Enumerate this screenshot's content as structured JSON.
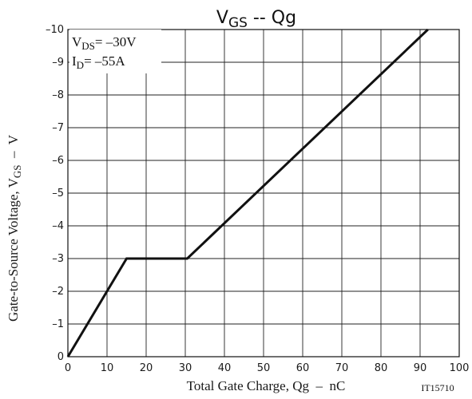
{
  "chart_data": {
    "type": "line",
    "title": {
      "main": "V",
      "sub": "GS",
      "rest": " -- Qg"
    },
    "xlabel": "Total Gate Charge, Qg  –  nC",
    "ylabel": {
      "main": "Gate-to-Source Voltage, V",
      "sub": "GS",
      "rest": "  –  V"
    },
    "xlim": [
      0,
      100
    ],
    "ylim": [
      0,
      -10
    ],
    "x_ticks": [
      0,
      10,
      20,
      30,
      40,
      50,
      60,
      70,
      80,
      90,
      100
    ],
    "y_ticks": [
      0,
      -1,
      -2,
      -3,
      -4,
      -5,
      -6,
      -7,
      -8,
      -9,
      -10
    ],
    "x_tick_labels": [
      "0",
      "10",
      "20",
      "30",
      "40",
      "50",
      "60",
      "70",
      "80",
      "90",
      "100"
    ],
    "y_tick_labels": [
      "0",
      "–1",
      "–2",
      "–3",
      "–4",
      "–5",
      "–6",
      "–7",
      "–8",
      "–9",
      "–10"
    ],
    "grid": true,
    "series": [
      {
        "x": [
          0,
          15,
          30.5,
          92
        ],
        "y": [
          0,
          -3,
          -3,
          -10
        ]
      }
    ],
    "conditions": [
      {
        "main": "V",
        "sub": "DS",
        "rest": "= –30V"
      },
      {
        "main": "I",
        "sub": "D",
        "rest": "= –55A"
      }
    ],
    "figure_id": "IT15710"
  }
}
